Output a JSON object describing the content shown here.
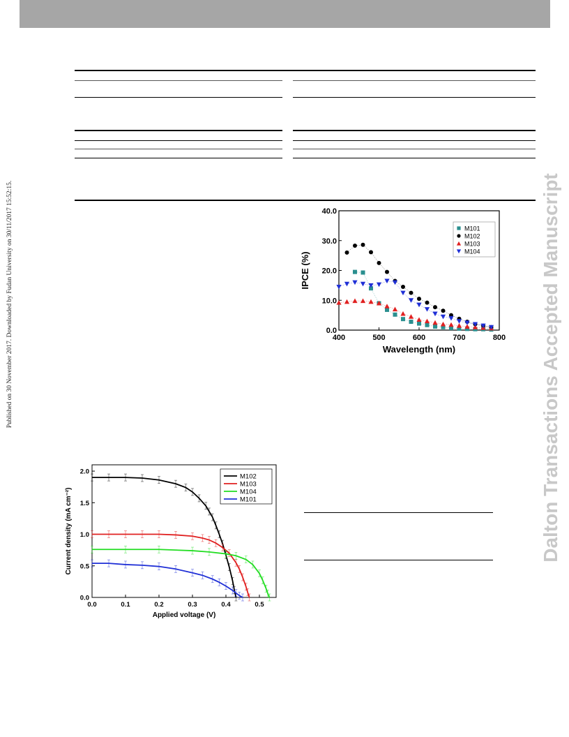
{
  "margin_text": {
    "left": "Published on 30 November 2017. Downloaded by Fudan University on 30/11/2017 15:52:15.",
    "right": "Dalton Transactions Accepted Manuscript"
  },
  "chart_data": [
    {
      "type": "scatter",
      "ylabel": "IPCE (%)",
      "xlabel": "Wavelength (nm)",
      "xlim": [
        400,
        800
      ],
      "ylim": [
        0,
        40
      ],
      "xticks": [
        "400",
        "500",
        "600",
        "700",
        "800"
      ],
      "yticks": [
        "0.0",
        "10.0",
        "20.0",
        "30.0",
        "40.0"
      ],
      "legend_position": "top-right",
      "series": [
        {
          "name": "M101",
          "color": "#2a8f8f",
          "marker": "square",
          "x": [
            440,
            460,
            480,
            500,
            520,
            540,
            560,
            580,
            600,
            620,
            640,
            660,
            680,
            700,
            720,
            740,
            760,
            780
          ],
          "y": [
            19.5,
            19.3,
            14.0,
            9.0,
            6.8,
            5.2,
            3.7,
            2.8,
            2.2,
            1.7,
            1.2,
            1.0,
            0.7,
            0.5,
            0.4,
            0.3,
            0.3,
            0.2
          ]
        },
        {
          "name": "M102",
          "color": "#000000",
          "marker": "circle",
          "x": [
            420,
            440,
            460,
            480,
            500,
            520,
            540,
            560,
            580,
            600,
            620,
            640,
            660,
            680,
            700,
            720,
            740,
            760,
            780
          ],
          "y": [
            26.0,
            28.3,
            28.6,
            26.1,
            22.5,
            19.5,
            16.5,
            14.5,
            12.5,
            10.5,
            9.2,
            7.7,
            6.5,
            5.0,
            3.8,
            2.8,
            2.0,
            1.5,
            1.0
          ]
        },
        {
          "name": "M103",
          "color": "#e02020",
          "marker": "triangle-up",
          "x": [
            400,
            420,
            440,
            460,
            480,
            500,
            520,
            540,
            560,
            580,
            600,
            620,
            640,
            660,
            680,
            700,
            720,
            740,
            760,
            780
          ],
          "y": [
            9.2,
            9.5,
            9.8,
            9.8,
            9.5,
            9.0,
            8.0,
            7.0,
            5.5,
            4.5,
            3.5,
            3.0,
            2.5,
            2.0,
            1.8,
            1.5,
            1.2,
            1.0,
            0.8,
            0.6
          ]
        },
        {
          "name": "M104",
          "color": "#1f2fd6",
          "marker": "triangle-down",
          "x": [
            400,
            420,
            440,
            460,
            480,
            500,
            520,
            540,
            560,
            580,
            600,
            620,
            640,
            660,
            680,
            700,
            720,
            740,
            760,
            780
          ],
          "y": [
            14.5,
            15.5,
            16.0,
            15.5,
            15.0,
            15.3,
            16.5,
            16.0,
            12.5,
            10.0,
            8.5,
            7.0,
            5.5,
            4.5,
            4.0,
            3.0,
            2.5,
            2.0,
            1.5,
            1.0
          ]
        }
      ]
    },
    {
      "type": "line",
      "ylabel": "Current density (mA cm⁻²)",
      "xlabel": "Applied voltage (V)",
      "xlim": [
        0.0,
        0.55
      ],
      "ylim": [
        0.0,
        2.1
      ],
      "xticks": [
        "0.0",
        "0.1",
        "0.2",
        "0.3",
        "0.4",
        "0.5"
      ],
      "yticks": [
        "0.0",
        "0.5",
        "1.0",
        "1.5",
        "2.0"
      ],
      "legend_position": "top-right",
      "series": [
        {
          "name": "M102",
          "color": "#000000",
          "x": [
            0.0,
            0.05,
            0.1,
            0.15,
            0.2,
            0.25,
            0.28,
            0.3,
            0.32,
            0.34,
            0.35,
            0.36,
            0.37,
            0.38,
            0.39,
            0.4,
            0.41,
            0.42,
            0.425,
            0.43
          ],
          "y": [
            1.9,
            1.9,
            1.9,
            1.89,
            1.86,
            1.8,
            1.74,
            1.67,
            1.57,
            1.45,
            1.36,
            1.27,
            1.14,
            1.0,
            0.85,
            0.67,
            0.48,
            0.26,
            0.12,
            0.0
          ]
        },
        {
          "name": "M103",
          "color": "#e02020",
          "x": [
            0.0,
            0.05,
            0.1,
            0.15,
            0.2,
            0.25,
            0.3,
            0.33,
            0.35,
            0.37,
            0.39,
            0.41,
            0.43,
            0.44,
            0.45,
            0.46,
            0.465,
            0.47
          ],
          "y": [
            1.0,
            1.0,
            1.0,
            1.0,
            1.0,
            0.99,
            0.97,
            0.94,
            0.91,
            0.86,
            0.79,
            0.7,
            0.55,
            0.45,
            0.32,
            0.17,
            0.08,
            0.0
          ]
        },
        {
          "name": "M104",
          "color": "#22dd22",
          "x": [
            0.0,
            0.1,
            0.2,
            0.3,
            0.35,
            0.4,
            0.43,
            0.46,
            0.48,
            0.5,
            0.51,
            0.52,
            0.525,
            0.53
          ],
          "y": [
            0.76,
            0.76,
            0.76,
            0.74,
            0.72,
            0.69,
            0.66,
            0.6,
            0.52,
            0.38,
            0.27,
            0.14,
            0.06,
            0.0
          ]
        },
        {
          "name": "M101",
          "color": "#1f2fd6",
          "x": [
            0.0,
            0.05,
            0.1,
            0.15,
            0.2,
            0.25,
            0.3,
            0.33,
            0.36,
            0.38,
            0.4,
            0.42,
            0.43,
            0.44,
            0.45
          ],
          "y": [
            0.54,
            0.54,
            0.52,
            0.51,
            0.49,
            0.45,
            0.39,
            0.35,
            0.29,
            0.24,
            0.18,
            0.11,
            0.07,
            0.03,
            0.0
          ]
        }
      ]
    }
  ]
}
